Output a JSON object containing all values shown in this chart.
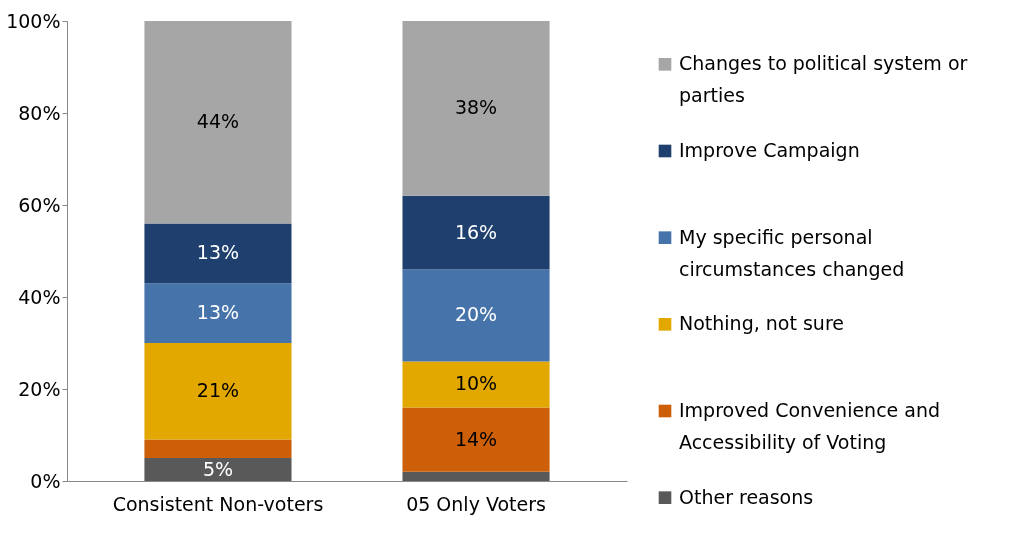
{
  "chart_data": {
    "type": "bar",
    "stacked": true,
    "categories": [
      "Consistent Non-voters",
      "05 Only Voters"
    ],
    "series": [
      {
        "name": "Other reasons",
        "color": "#595959",
        "values": [
          5,
          2
        ],
        "value_labels": [
          "5%",
          null
        ]
      },
      {
        "name": "Improved Convenience and Accessibility of Voting",
        "color": "#cc5f08",
        "values": [
          4,
          14
        ],
        "value_labels": [
          null,
          "14%"
        ]
      },
      {
        "name": "Nothing, not sure",
        "color": "#e3a800",
        "values": [
          21,
          10
        ],
        "value_labels": [
          "21%",
          "10%"
        ]
      },
      {
        "name": "My specific personal circumstances changed",
        "color": "#4674aa",
        "values": [
          13,
          20
        ],
        "value_labels": [
          "13%",
          "20%"
        ]
      },
      {
        "name": "Improve Campaign",
        "color": "#1f3f6e",
        "values": [
          13,
          16
        ],
        "value_labels": [
          "13%",
          "16%"
        ]
      },
      {
        "name": "Changes to political system or parties",
        "color": "#a6a6a6",
        "values": [
          44,
          38
        ],
        "value_labels": [
          "44%",
          "38%"
        ]
      }
    ],
    "ylim": [
      0,
      100
    ],
    "yticks": [
      {
        "value": 0,
        "label": "0%"
      },
      {
        "value": 20,
        "label": "20%"
      },
      {
        "value": 40,
        "label": "40%"
      },
      {
        "value": 60,
        "label": "60%"
      },
      {
        "value": 80,
        "label": "80%"
      },
      {
        "value": 100,
        "label": "100%"
      }
    ],
    "grid": false,
    "legend": "right"
  }
}
